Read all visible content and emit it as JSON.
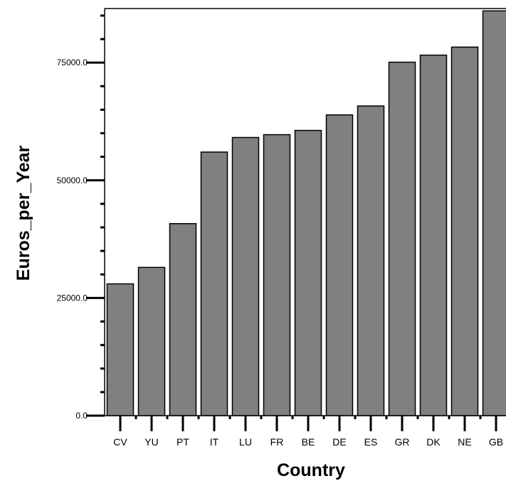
{
  "chart_data": {
    "type": "bar",
    "xlabel": "Country",
    "ylabel": "Euros_per_Year",
    "categories": [
      "CV",
      "YU",
      "PT",
      "IT",
      "LU",
      "FR",
      "BE",
      "DE",
      "ES",
      "GR",
      "DK",
      "NE",
      "GB"
    ],
    "values": [
      28000,
      31500,
      40800,
      56000,
      59100,
      59700,
      60600,
      63900,
      65800,
      75100,
      76600,
      78300,
      86000
    ],
    "ylim": [
      0,
      86500
    ],
    "yticks": [
      0,
      25000,
      50000,
      75000
    ],
    "ytick_labels": [
      "0.0",
      "25000.0",
      "50000.0",
      "75000.0"
    ],
    "y_minor_step": 5000,
    "grid": false,
    "colors": {
      "bar_fill": "#808080",
      "bar_stroke": "#000000",
      "axis": "#000000",
      "background": "#ffffff"
    }
  }
}
